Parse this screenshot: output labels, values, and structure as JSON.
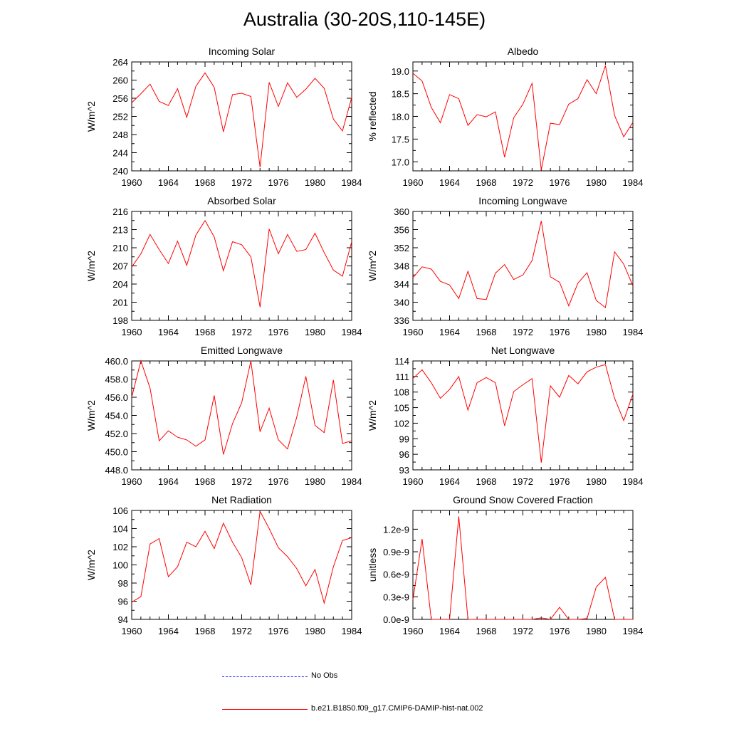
{
  "title": "Australia (30-20S,110-145E)",
  "colors": {
    "model": "#ff0000",
    "obs": "#4040ff",
    "axis": "#000000"
  },
  "legend": {
    "obs_label": "No Obs",
    "model_label": "b.e21.B1850.f09_g17.CMIP6-DAMIP-hist-nat.002"
  },
  "chart_data": [
    {
      "type": "line",
      "title": "Incoming Solar",
      "ylabel": "W/m^2",
      "xlim": [
        1960,
        1984
      ],
      "ylim": [
        240,
        264
      ],
      "yticks": [
        "240",
        "244",
        "248",
        "252",
        "256",
        "260",
        "264"
      ],
      "xticks": [
        "1960",
        "1964",
        "1968",
        "1972",
        "1976",
        "1980",
        "1984"
      ],
      "x": [
        1960,
        1961,
        1962,
        1963,
        1964,
        1965,
        1966,
        1967,
        1968,
        1969,
        1970,
        1971,
        1972,
        1973,
        1974,
        1975,
        1976,
        1977,
        1978,
        1979,
        1980,
        1981,
        1982,
        1983,
        1984
      ],
      "values": [
        255.0,
        257.0,
        259.1,
        255.3,
        254.4,
        258.1,
        251.8,
        258.6,
        261.6,
        258.4,
        248.6,
        256.8,
        257.1,
        256.4,
        240.8,
        259.5,
        254.2,
        259.4,
        256.2,
        258.0,
        260.4,
        258.2,
        251.4,
        248.8,
        256.2
      ]
    },
    {
      "type": "line",
      "title": "Albedo",
      "ylabel": "% reflected",
      "xlim": [
        1960,
        1984
      ],
      "ylim": [
        16.8,
        19.2
      ],
      "yticks": [
        "17.0",
        "17.5",
        "18.0",
        "18.5",
        "19.0"
      ],
      "xticks": [
        "1960",
        "1964",
        "1968",
        "1972",
        "1976",
        "1980",
        "1984"
      ],
      "x": [
        1960,
        1961,
        1962,
        1963,
        1964,
        1965,
        1966,
        1967,
        1968,
        1969,
        1970,
        1971,
        1972,
        1973,
        1974,
        1975,
        1976,
        1977,
        1978,
        1979,
        1980,
        1981,
        1982,
        1983,
        1984
      ],
      "values": [
        18.95,
        18.78,
        18.2,
        17.86,
        18.48,
        18.39,
        17.8,
        18.04,
        17.99,
        18.1,
        17.1,
        17.97,
        18.27,
        18.73,
        16.82,
        17.85,
        17.82,
        18.27,
        18.39,
        18.81,
        18.5,
        19.12,
        18.02,
        17.55,
        17.87
      ]
    },
    {
      "type": "line",
      "title": "Absorbed Solar",
      "ylabel": "W/m^2",
      "xlim": [
        1960,
        1984
      ],
      "ylim": [
        198,
        216
      ],
      "yticks": [
        "198",
        "201",
        "204",
        "207",
        "210",
        "213",
        "216"
      ],
      "xticks": [
        "1960",
        "1964",
        "1968",
        "1972",
        "1976",
        "1980",
        "1984"
      ],
      "x": [
        1960,
        1961,
        1962,
        1963,
        1964,
        1965,
        1966,
        1967,
        1968,
        1969,
        1970,
        1971,
        1972,
        1973,
        1974,
        1975,
        1976,
        1977,
        1978,
        1979,
        1980,
        1981,
        1982,
        1983,
        1984
      ],
      "values": [
        206.8,
        209.0,
        212.2,
        209.7,
        207.4,
        211.1,
        207.1,
        212.1,
        214.5,
        211.8,
        206.2,
        211.0,
        210.5,
        208.5,
        200.2,
        213.1,
        209.0,
        212.2,
        209.4,
        209.7,
        212.4,
        209.2,
        206.3,
        205.3,
        211.0
      ]
    },
    {
      "type": "line",
      "title": "Incoming Longwave",
      "ylabel": "W/m^2",
      "xlim": [
        1960,
        1984
      ],
      "ylim": [
        336,
        360
      ],
      "yticks": [
        "336",
        "340",
        "344",
        "348",
        "352",
        "356",
        "360"
      ],
      "xticks": [
        "1960",
        "1964",
        "1968",
        "1972",
        "1976",
        "1980",
        "1984"
      ],
      "x": [
        1960,
        1961,
        1962,
        1963,
        1964,
        1965,
        1966,
        1967,
        1968,
        1969,
        1970,
        1971,
        1972,
        1973,
        1974,
        1975,
        1976,
        1977,
        1978,
        1979,
        1980,
        1981,
        1982,
        1983,
        1984
      ],
      "values": [
        345.4,
        347.8,
        347.3,
        344.6,
        343.8,
        340.8,
        346.8,
        340.8,
        340.6,
        346.4,
        348.3,
        345.0,
        346.0,
        349.2,
        357.9,
        345.6,
        344.4,
        339.2,
        344.2,
        346.5,
        340.4,
        338.8,
        351.1,
        348.4,
        343.6
      ]
    },
    {
      "type": "line",
      "title": "Emitted Longwave",
      "ylabel": "W/m^2",
      "xlim": [
        1960,
        1984
      ],
      "ylim": [
        448,
        460
      ],
      "yticks": [
        "448.0",
        "450.0",
        "452.0",
        "454.0",
        "456.0",
        "458.0",
        "460.0"
      ],
      "xticks": [
        "1960",
        "1964",
        "1968",
        "1972",
        "1976",
        "1980",
        "1984"
      ],
      "x": [
        1960,
        1961,
        1962,
        1963,
        1964,
        1965,
        1966,
        1967,
        1968,
        1969,
        1970,
        1971,
        1972,
        1973,
        1974,
        1975,
        1976,
        1977,
        1978,
        1979,
        1980,
        1981,
        1982,
        1983,
        1984
      ],
      "values": [
        456.0,
        460.0,
        457.0,
        451.2,
        452.3,
        451.6,
        451.3,
        450.6,
        451.3,
        456.2,
        449.7,
        453.1,
        455.4,
        460.0,
        452.2,
        454.8,
        451.3,
        450.3,
        453.8,
        458.3,
        452.9,
        452.1,
        457.9,
        450.9,
        451.2
      ]
    },
    {
      "type": "line",
      "title": "Net Longwave",
      "ylabel": "W/m^2",
      "xlim": [
        1960,
        1984
      ],
      "ylim": [
        93,
        114
      ],
      "yticks": [
        "93",
        "96",
        "99",
        "102",
        "105",
        "108",
        "111",
        "114"
      ],
      "xticks": [
        "1960",
        "1964",
        "1968",
        "1972",
        "1976",
        "1980",
        "1984"
      ],
      "x": [
        1960,
        1961,
        1962,
        1963,
        1964,
        1965,
        1966,
        1967,
        1968,
        1969,
        1970,
        1971,
        1972,
        1973,
        1974,
        1975,
        1976,
        1977,
        1978,
        1979,
        1980,
        1981,
        1982,
        1983,
        1984
      ],
      "values": [
        110.6,
        112.3,
        109.8,
        106.8,
        108.5,
        111.0,
        104.5,
        109.8,
        110.8,
        109.8,
        101.5,
        108.1,
        109.4,
        110.6,
        94.4,
        109.2,
        107.0,
        111.2,
        109.6,
        111.9,
        112.8,
        113.3,
        106.8,
        102.5,
        107.6
      ]
    },
    {
      "type": "line",
      "title": "Net Radiation",
      "ylabel": "W/m^2",
      "xlim": [
        1960,
        1984
      ],
      "ylim": [
        94,
        106
      ],
      "yticks": [
        "94",
        "96",
        "98",
        "100",
        "102",
        "104",
        "106"
      ],
      "xticks": [
        "1960",
        "1964",
        "1968",
        "1972",
        "1976",
        "1980",
        "1984"
      ],
      "x": [
        1960,
        1961,
        1962,
        1963,
        1964,
        1965,
        1966,
        1967,
        1968,
        1969,
        1970,
        1971,
        1972,
        1973,
        1974,
        1975,
        1976,
        1977,
        1978,
        1979,
        1980,
        1981,
        1982,
        1983,
        1984
      ],
      "values": [
        95.9,
        96.5,
        102.3,
        102.9,
        98.7,
        99.8,
        102.5,
        102.0,
        103.7,
        101.8,
        104.6,
        102.5,
        100.8,
        97.8,
        105.9,
        104.0,
        101.9,
        100.9,
        99.6,
        97.7,
        99.5,
        95.8,
        99.8,
        102.7,
        103.0
      ]
    },
    {
      "type": "line",
      "title": "Ground Snow Covered Fraction",
      "ylabel": "unitless",
      "xlim": [
        1960,
        1984
      ],
      "ylim": [
        0,
        1.45
      ],
      "ytick_values": [
        0,
        0.3,
        0.6,
        0.9,
        1.2
      ],
      "yticks": [
        "0.0e-9",
        "0.3e-9",
        "0.6e-9",
        "0.9e-9",
        "1.2e-9"
      ],
      "xticks": [
        "1960",
        "1964",
        "1968",
        "1972",
        "1976",
        "1980",
        "1984"
      ],
      "x": [
        1960,
        1961,
        1962,
        1963,
        1964,
        1965,
        1966,
        1967,
        1968,
        1969,
        1970,
        1971,
        1972,
        1973,
        1974,
        1975,
        1976,
        1977,
        1978,
        1979,
        1980,
        1981,
        1982,
        1983,
        1984
      ],
      "values": [
        0.26,
        1.07,
        0.0,
        0.0,
        0.0,
        1.37,
        0.0,
        0.0,
        0.0,
        0.0,
        0.0,
        0.0,
        0.0,
        0.0,
        0.02,
        0.0,
        0.16,
        0.0,
        0.0,
        0.01,
        0.43,
        0.56,
        0.0,
        0.0,
        0.0
      ]
    }
  ]
}
